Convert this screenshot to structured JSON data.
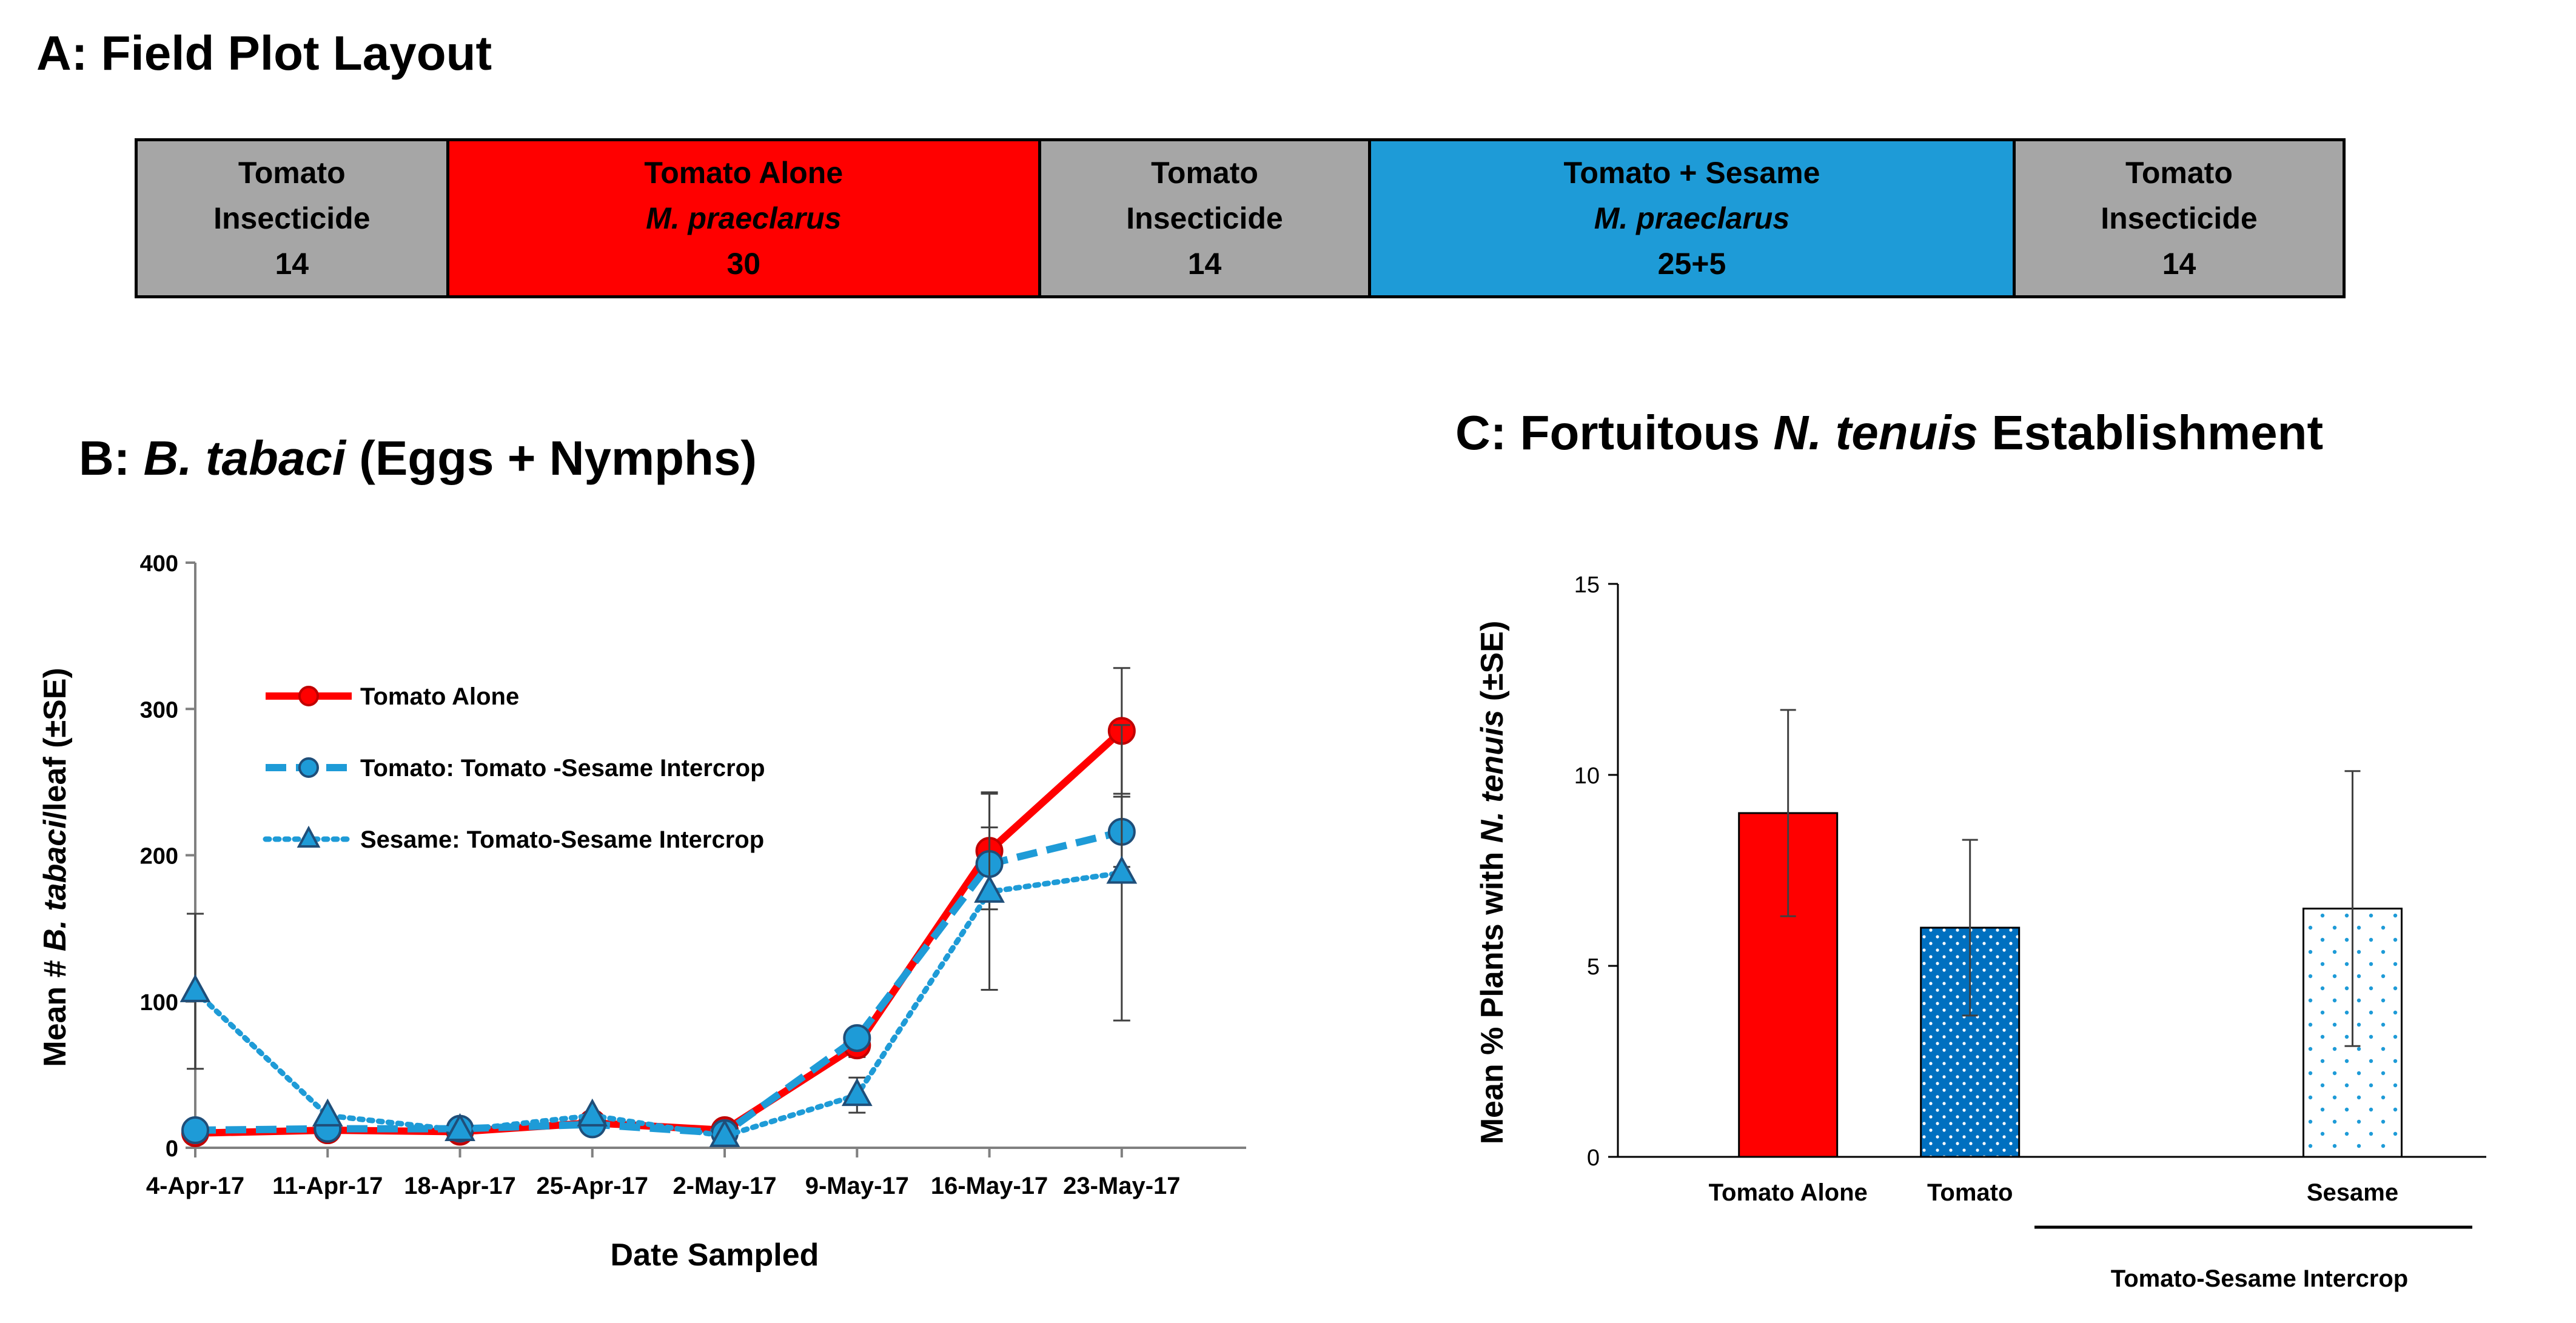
{
  "panel_a": {
    "title": "A: Field Plot Layout",
    "plots": [
      {
        "crop": "Tomato",
        "treatment": "Insecticide",
        "count": "14",
        "color": "#a6a6a6",
        "weight": 1.0
      },
      {
        "crop": "Tomato  Alone",
        "treatment": "M. praeclarus",
        "count": "30",
        "color": "#ff0000",
        "weight": 1.91,
        "italic": true
      },
      {
        "crop": "Tomato",
        "treatment": "Insecticide",
        "count": "14",
        "color": "#a6a6a6",
        "weight": 1.06
      },
      {
        "crop": "Tomato + Sesame",
        "treatment": "M. praeclarus",
        "count": "25+5",
        "color": "#1e9bd7",
        "weight": 2.08,
        "italic": true
      },
      {
        "crop": "Tomato",
        "treatment": "Insecticide",
        "count": "14",
        "color": "#a6a6a6",
        "weight": 1.06
      }
    ]
  },
  "panel_b": {
    "title_prefix": "B: ",
    "title_species": "B. tabaci",
    "title_suffix": " (Eggs + Nymphs)"
  },
  "panel_c": {
    "title_prefix": "C: Fortuitous ",
    "title_species": "N. tenuis",
    "title_suffix": " Establishment",
    "group_label": "Tomato-Sesame Intercrop"
  },
  "chart_data": [
    {
      "type": "line",
      "title": "B: B. tabaci (Eggs + Nymphs)",
      "xlabel": "Date Sampled",
      "ylabel_prefix": "Mean # ",
      "ylabel_species": "B. tabaci",
      "ylabel_suffix": "/leaf (±SE)",
      "ylim": [
        0,
        400
      ],
      "yticks": [
        0,
        100,
        200,
        300,
        400
      ],
      "categories": [
        "4-Apr-17",
        "11-Apr-17",
        "18-Apr-17",
        "25-Apr-17",
        "2-May-17",
        "9-May-17",
        "16-May-17",
        "23-May-17"
      ],
      "legend_position": "upper-left",
      "series": [
        {
          "name": "Tomato Alone",
          "color": "#ff0000",
          "style": "solid",
          "marker": "circle",
          "values": [
            10,
            12,
            11,
            17,
            12,
            70,
            203,
            285
          ],
          "errors": [
            0,
            0,
            0,
            0,
            0,
            8,
            40,
            43
          ]
        },
        {
          "name": "Tomato: Tomato -Sesame Intercrop",
          "color": "#1e9bd7",
          "style": "dashed",
          "marker": "circle",
          "values": [
            12,
            13,
            13,
            16,
            10,
            75,
            194,
            216
          ],
          "errors": [
            0,
            0,
            0,
            0,
            0,
            6,
            25,
            24
          ]
        },
        {
          "name": "Sesame: Tomato-Sesame Intercrop",
          "color": "#1e9bd7",
          "style": "dotted",
          "marker": "triangle",
          "values": [
            107,
            22,
            12,
            22,
            8,
            36,
            175,
            188
          ],
          "errors": [
            53,
            0,
            0,
            0,
            0,
            12,
            67,
            101
          ]
        }
      ]
    },
    {
      "type": "bar",
      "title": "C: Fortuitous N. tenuis Establishment",
      "ylabel_prefix": "Mean % Plants with ",
      "ylabel_species": "N. tenuis",
      "ylabel_suffix": " (±SE)",
      "ylim": [
        0,
        15
      ],
      "yticks": [
        0,
        5,
        10,
        15
      ],
      "categories": [
        "Tomato Alone",
        "Tomato",
        "Sesame"
      ],
      "values": [
        9.0,
        6.0,
        6.5
      ],
      "errors": [
        2.7,
        2.3,
        3.6
      ],
      "fills": [
        {
          "kind": "solid",
          "color": "#ff0000"
        },
        {
          "kind": "dense-dots",
          "color": "#0070c0"
        },
        {
          "kind": "sparse-dots",
          "color": "#1e9bd7"
        }
      ]
    }
  ]
}
